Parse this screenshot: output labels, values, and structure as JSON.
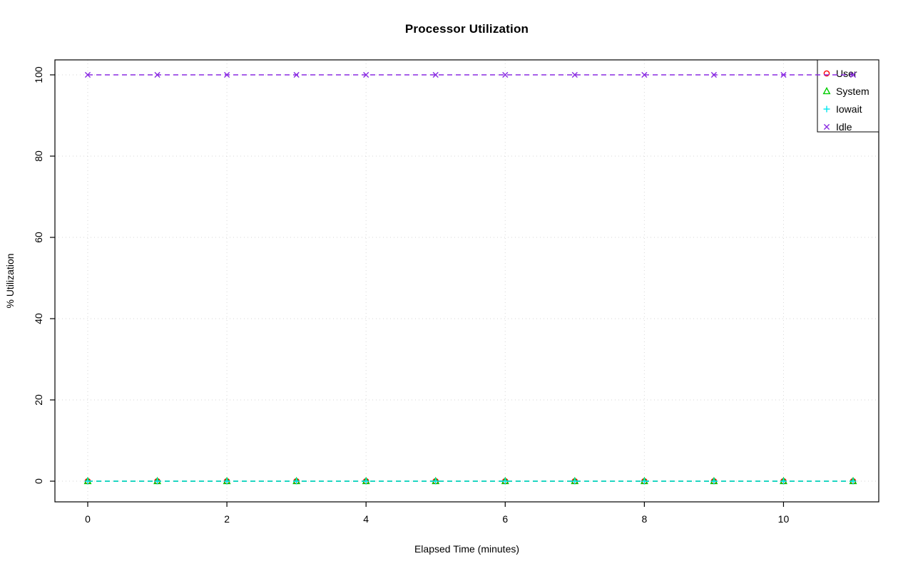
{
  "chart_data": {
    "type": "line",
    "title": "Processor Utilization",
    "xlabel": "Elapsed Time (minutes)",
    "ylabel": "% Utilization",
    "x": [
      0,
      1,
      2,
      3,
      4,
      5,
      6,
      7,
      8,
      9,
      10,
      11
    ],
    "series": [
      {
        "name": "User",
        "color": "#FF0000",
        "marker": "circle",
        "values": [
          0,
          0,
          0,
          0,
          0,
          0,
          0,
          0,
          0,
          0,
          0,
          0
        ]
      },
      {
        "name": "System",
        "color": "#00CD00",
        "marker": "triangle",
        "values": [
          0,
          0,
          0,
          0,
          0,
          0,
          0,
          0,
          0,
          0,
          0,
          0
        ]
      },
      {
        "name": "Iowait",
        "color": "#00E5EE",
        "marker": "plus",
        "values": [
          0,
          0,
          0,
          0,
          0,
          0,
          0,
          0,
          0,
          0,
          0,
          0
        ]
      },
      {
        "name": "Idle",
        "color": "#8A2BE2",
        "marker": "x",
        "values": [
          100,
          100,
          100,
          100,
          100,
          100,
          100,
          100,
          100,
          100,
          100,
          100
        ]
      }
    ],
    "xlim": [
      0,
      11
    ],
    "ylim": [
      0,
      100
    ],
    "xticks": [
      0,
      2,
      4,
      6,
      8,
      10
    ],
    "yticks": [
      0,
      20,
      40,
      60,
      80,
      100
    ],
    "grid": true,
    "grid_style": "dotted",
    "grid_color": "#d6d6d6",
    "line_style": "dashed",
    "legend_position": "top-right",
    "legend_entries": [
      "User",
      "System",
      "Iowait",
      "Idle"
    ],
    "axis_color": "#000000",
    "background": "#ffffff"
  }
}
